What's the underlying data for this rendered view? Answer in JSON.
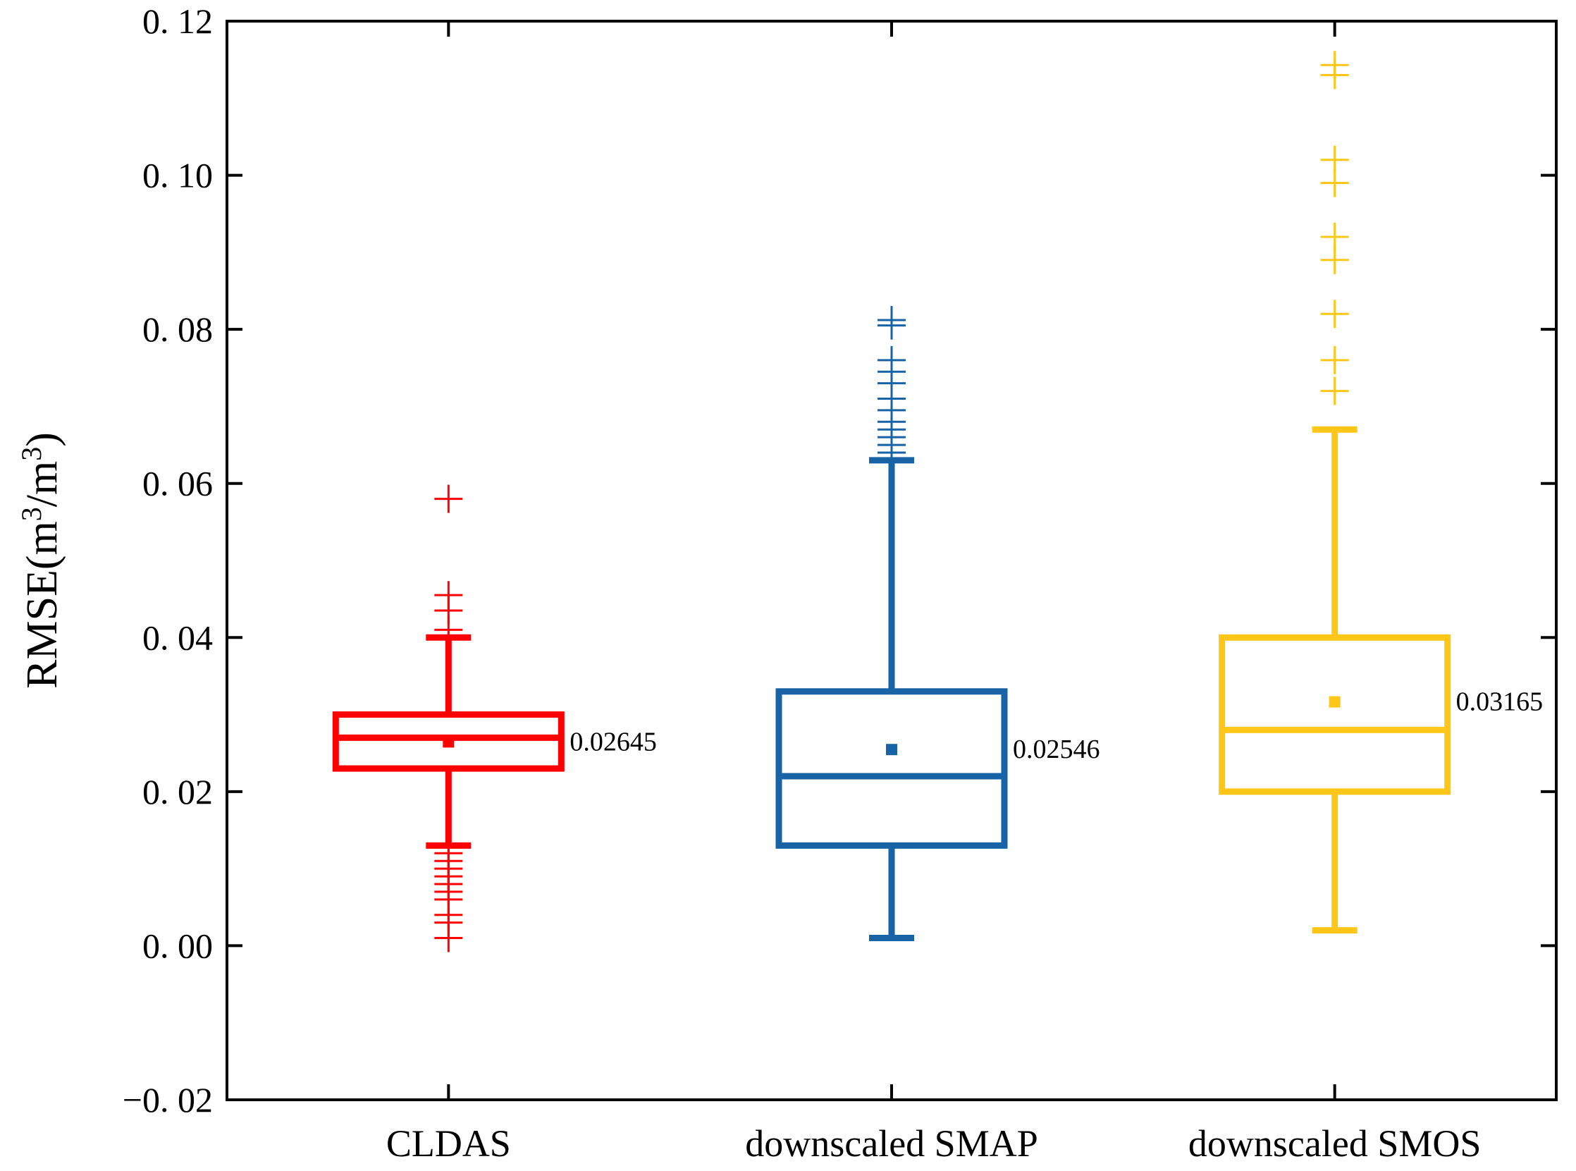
{
  "chart_data": {
    "type": "boxplot",
    "title": "",
    "xlabel": "",
    "ylabel_main": "RMSE(m",
    "ylabel_sup1": "3",
    "ylabel_mid": "/m",
    "ylabel_sup2": "3",
    "ylabel_end": ")",
    "ylim": [
      -0.02,
      0.12
    ],
    "yticks": [
      -0.02,
      0.0,
      0.02,
      0.04,
      0.06,
      0.08,
      0.1,
      0.12
    ],
    "ytick_labels": [
      "−0. 02",
      "0. 00",
      "0. 02",
      "0. 04",
      "0. 06",
      "0. 08",
      "0. 10",
      "0. 12"
    ],
    "grid": false,
    "categories": [
      "CLDAS",
      "downscaled SMAP",
      "downscaled SMOS"
    ],
    "series": [
      {
        "category": "CLDAS",
        "color": "#ff0000",
        "whisker_low": 0.013,
        "q1": 0.023,
        "median": 0.027,
        "q3": 0.03,
        "whisker_high": 0.04,
        "mean": 0.02645,
        "mean_label": "0.02645",
        "outliers": [
          0.058,
          0.0455,
          0.0435,
          0.041,
          0.012,
          0.011,
          0.01,
          0.009,
          0.008,
          0.007,
          0.006,
          0.004,
          0.003,
          0.001
        ]
      },
      {
        "category": "downscaled SMAP",
        "color": "#1763a6",
        "whisker_low": 0.001,
        "q1": 0.013,
        "median": 0.022,
        "q3": 0.033,
        "whisker_high": 0.063,
        "mean": 0.02546,
        "mean_label": "0.02546",
        "outliers": [
          0.0812,
          0.0805,
          0.076,
          0.0745,
          0.073,
          0.071,
          0.0695,
          0.068,
          0.067,
          0.066,
          0.065,
          0.064
        ]
      },
      {
        "category": "downscaled SMOS",
        "color": "#ffc61a",
        "whisker_low": 0.002,
        "q1": 0.02,
        "median": 0.028,
        "q3": 0.04,
        "whisker_high": 0.067,
        "mean": 0.03165,
        "mean_label": "0.03165",
        "outliers": [
          0.1143,
          0.113,
          0.102,
          0.099,
          0.092,
          0.089,
          0.082,
          0.076,
          0.072
        ]
      }
    ]
  }
}
